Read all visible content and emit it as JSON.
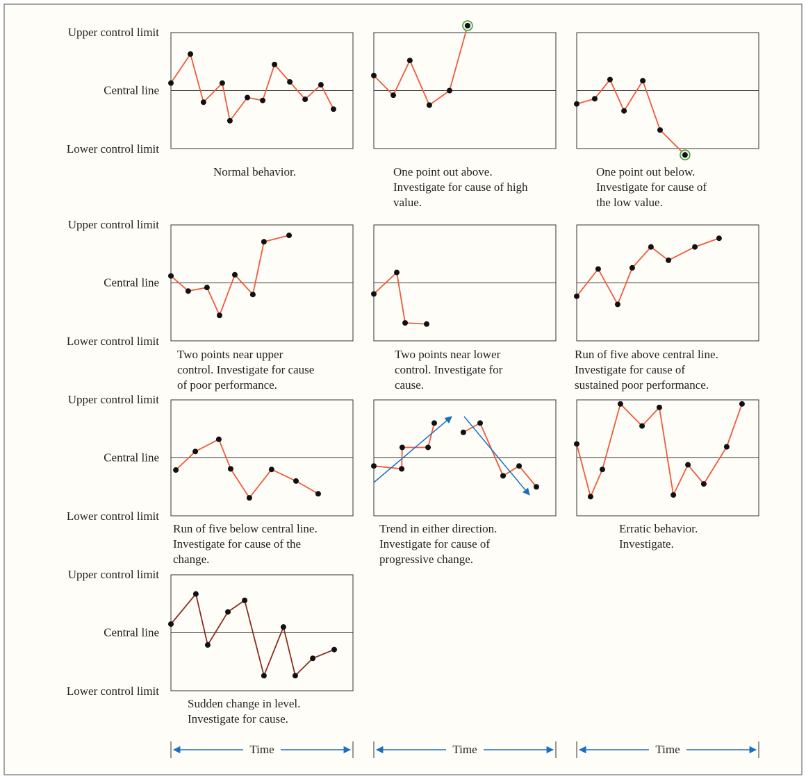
{
  "yaxis": {
    "ylim": [
      -1,
      1
    ],
    "yticks": [
      {
        "value": 1,
        "label": "Upper control limit"
      },
      {
        "value": 0,
        "label": "Central line"
      },
      {
        "value": -1,
        "label": "Lower control limit"
      }
    ]
  },
  "xaxis": {
    "label": "Time",
    "xlim": [
      0,
      100
    ]
  },
  "chart_data": [
    {
      "type": "line",
      "color": "#ef5a3c",
      "caption": [
        "Normal behavior."
      ],
      "x": [
        0,
        10.7,
        17.9,
        28.2,
        32.4,
        42,
        50.4,
        56.9,
        65.3,
        73.7,
        82.4,
        89.3
      ],
      "values": [
        0.13,
        0.63,
        -0.2,
        0.13,
        -0.52,
        -0.12,
        -0.17,
        0.45,
        0.15,
        -0.15,
        0.1,
        -0.32
      ]
    },
    {
      "type": "line",
      "color": "#ef5a3c",
      "caption": [
        "One point out above.",
        "Investigate for cause of high",
        "value."
      ],
      "x": [
        0,
        10.7,
        19.8,
        30.5,
        41.6,
        51.5
      ],
      "values": [
        0.26,
        -0.08,
        0.52,
        -0.25,
        0,
        1.12
      ],
      "highlight": [
        5
      ]
    },
    {
      "type": "line",
      "color": "#ef5a3c",
      "caption": [
        "One point out below.",
        "Investigate for cause of",
        "the low value."
      ],
      "x": [
        0,
        9.9,
        18.3,
        26,
        36.3,
        45.8,
        59.5
      ],
      "values": [
        -0.23,
        -0.14,
        0.19,
        -0.35,
        0.17,
        -0.68,
        -1.11
      ],
      "highlight": [
        6
      ]
    },
    {
      "type": "line",
      "color": "#ef5a3c",
      "caption": [
        "Two points near upper",
        "control. Investigate for cause",
        "of poor performance."
      ],
      "x": [
        0,
        9.5,
        19.8,
        26.7,
        35.1,
        45,
        51.1,
        64.9
      ],
      "values": [
        0.12,
        -0.14,
        -0.08,
        -0.56,
        0.14,
        -0.2,
        0.71,
        0.82
      ]
    },
    {
      "type": "line",
      "color": "#ef5a3c",
      "caption": [
        "Two points near lower",
        "control. Investigate for",
        "cause."
      ],
      "x": [
        0,
        12.6,
        17.2,
        29
      ],
      "values": [
        -0.19,
        0.18,
        -0.69,
        -0.71
      ]
    },
    {
      "type": "line",
      "color": "#ef5a3c",
      "caption": [
        "Run of five above central line.",
        "Investigate for cause of",
        "sustained poor performance."
      ],
      "x": [
        0,
        11.8,
        22.5,
        30.5,
        40.8,
        50.4,
        64.9,
        78.2
      ],
      "values": [
        -0.23,
        0.24,
        -0.37,
        0.26,
        0.62,
        0.39,
        0.62,
        0.77
      ]
    },
    {
      "type": "line",
      "color": "#ef5a3c",
      "caption": [
        "Run of five below central line.",
        "Investigate for cause of the",
        "change."
      ],
      "x": [
        2.7,
        13.4,
        26.3,
        32.8,
        43.1,
        55.3,
        68.7,
        80.9
      ],
      "values": [
        -0.21,
        0.11,
        0.32,
        -0.19,
        -0.69,
        -0.2,
        -0.4,
        -0.62
      ]
    },
    {
      "type": "line",
      "color": "#ef5a3c",
      "caption": [
        "Trend in either direction.",
        "Investigate for cause of",
        "progressive change."
      ],
      "x": [
        0,
        15.3,
        15.6,
        29.8,
        33.2,
        null,
        49.2,
        58.4,
        71,
        79.8,
        89.3
      ],
      "values": [
        -0.14,
        -0.19,
        0.18,
        0.18,
        0.6,
        null,
        0.44,
        0.6,
        -0.31,
        -0.14,
        -0.5
      ]
    },
    {
      "type": "line",
      "color": "#ef5a3c",
      "caption": [
        "Erratic behavior.",
        "Investigate."
      ],
      "x": [
        0,
        7.6,
        14.1,
        24,
        35.9,
        45.4,
        53.1,
        61.1,
        69.8,
        82.4,
        90.8
      ],
      "values": [
        0.24,
        -0.67,
        -0.2,
        0.93,
        0.55,
        0.87,
        -0.64,
        -0.12,
        -0.45,
        0.19,
        0.93
      ]
    },
    {
      "type": "line",
      "color": "#8a2c1e",
      "caption": [
        "Sudden change in level.",
        "Investigate for cause."
      ],
      "x": [
        0,
        13.7,
        20.2,
        31.3,
        40.5,
        51.1,
        61.8,
        68.3,
        77.9,
        89.7
      ],
      "values": [
        0.15,
        0.67,
        -0.21,
        0.36,
        0.56,
        -0.74,
        0.1,
        -0.74,
        -0.44,
        -0.29
      ]
    }
  ]
}
